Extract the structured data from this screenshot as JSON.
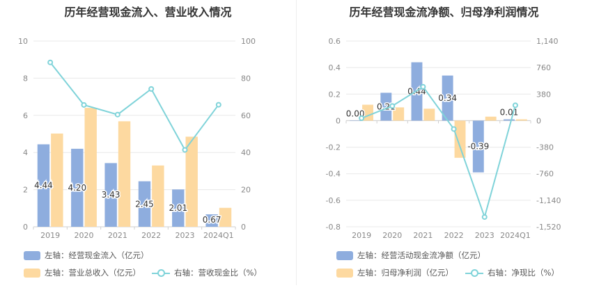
{
  "colors": {
    "bar_blue": "#8eadde",
    "bar_orange": "#fdd9a0",
    "line_cyan": "#7fd3d9",
    "label_text": "#333333"
  },
  "charts": [
    {
      "title": "历年经营现金流入、营业收入情况",
      "legend": [
        {
          "kind": "bar",
          "color": "#8eadde",
          "label": "左轴：经营现金流入（亿元）"
        },
        {
          "kind": "bar",
          "color": "#fdd9a0",
          "label": "左轴：营业总收入（亿元）"
        },
        {
          "kind": "line",
          "color": "#7fd3d9",
          "label": "右轴：营收现金比（%）"
        }
      ]
    },
    {
      "title": "历年经营现金流净额、归母净利润情况",
      "legend": [
        {
          "kind": "bar",
          "color": "#8eadde",
          "label": "左轴：经营活动现金流净额（亿元）"
        },
        {
          "kind": "bar",
          "color": "#fdd9a0",
          "label": "左轴：归母净利润（亿元）"
        },
        {
          "kind": "line",
          "color": "#7fd3d9",
          "label": "右轴：净现比（%）"
        }
      ]
    }
  ],
  "chart_data": [
    {
      "type": "bar",
      "title": "历年经营现金流入、营业收入情况",
      "categories": [
        "2019",
        "2020",
        "2021",
        "2022",
        "2023",
        "2024Q1"
      ],
      "left_axis": {
        "ylim": [
          0,
          10
        ],
        "ticks": [
          "0",
          "2",
          "4",
          "6",
          "8",
          "10"
        ]
      },
      "right_axis": {
        "ylim": [
          0,
          100
        ],
        "ticks": [
          "0",
          "20",
          "40",
          "60",
          "80",
          "100"
        ]
      },
      "series": [
        {
          "name": "左轴：经营现金流入（亿元）",
          "type": "bar",
          "axis": "left",
          "color": "#8eadde",
          "values": [
            4.44,
            4.2,
            3.43,
            2.45,
            2.01,
            0.67
          ],
          "data_labels": [
            "4.44",
            "4.20",
            "3.43",
            "2.45",
            "2.01",
            "0.67"
          ]
        },
        {
          "name": "左轴：营业总收入（亿元）",
          "type": "bar",
          "axis": "left",
          "color": "#fdd9a0",
          "values": [
            5.02,
            6.4,
            5.68,
            3.3,
            4.85,
            1.02
          ]
        },
        {
          "name": "右轴：营收现金比（%）",
          "type": "line",
          "axis": "right",
          "color": "#7fd3d9",
          "values": [
            88.5,
            65.6,
            60.4,
            74.2,
            41.4,
            65.7
          ]
        }
      ],
      "grid": true
    },
    {
      "type": "bar",
      "title": "历年经营现金流净额、归母净利润情况",
      "categories": [
        "2019",
        "2020",
        "2021",
        "2022",
        "2023",
        "2024Q1"
      ],
      "left_axis": {
        "ylim": [
          -0.8,
          0.6
        ],
        "ticks": [
          "-0.8",
          "-0.6",
          "-0.4",
          "-0.2",
          "0",
          "0.2",
          "0.4",
          "0.6"
        ]
      },
      "right_axis": {
        "ylim": [
          -1520,
          1140
        ],
        "ticks": [
          "-1,520",
          "-1,140",
          "-760",
          "-380",
          "0",
          "380",
          "760",
          "1,140"
        ]
      },
      "series": [
        {
          "name": "左轴：经营活动现金流净额（亿元）",
          "type": "bar",
          "axis": "left",
          "color": "#8eadde",
          "values": [
            0.0,
            0.21,
            0.44,
            0.34,
            -0.39,
            0.01
          ],
          "data_labels": [
            "0.00",
            "0.21",
            "0.44",
            "0.34",
            "-0.39",
            "0.01"
          ]
        },
        {
          "name": "左轴：归母净利润（亿元）",
          "type": "bar",
          "axis": "left",
          "color": "#fdd9a0",
          "values": [
            0.12,
            0.1,
            0.09,
            -0.28,
            0.03,
            0.01
          ]
        },
        {
          "name": "右轴：净现比（%）",
          "type": "line",
          "axis": "right",
          "color": "#7fd3d9",
          "values": [
            35,
            210,
            485,
            -120,
            -1380,
            220
          ]
        }
      ],
      "grid": true
    }
  ]
}
